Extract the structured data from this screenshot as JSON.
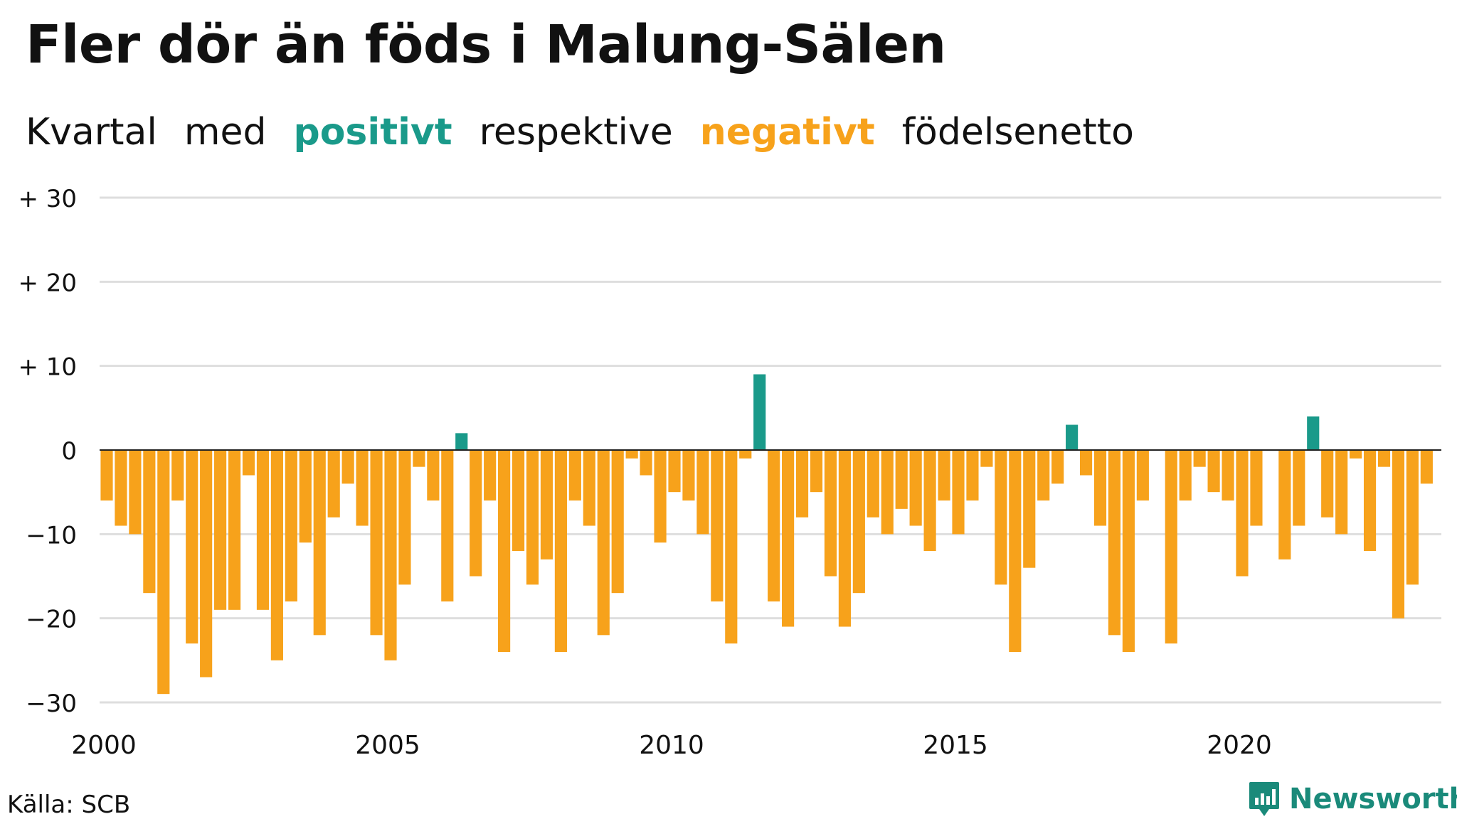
{
  "title": "Fler dör än föds i Malung-Sälen",
  "subtitle": {
    "w1": "Kvartal",
    "w2": "med",
    "positive": "positivt",
    "w3": "respektive",
    "negative": "negativt",
    "w4": "födelsenetto"
  },
  "colors": {
    "positive": "#1a9a8a",
    "negative": "#f7a21b",
    "grid": "#dedede",
    "zero": "#222222"
  },
  "source": "Källa: SCB",
  "brand": "Newsworthy",
  "chart_data": {
    "type": "bar",
    "title": "Fler dör än föds i Malung-Sälen",
    "subtitle": "Kvartal med positivt respektive negativt födelsenetto",
    "x_unit": "quarter",
    "x_start": "2000 Q1",
    "ylim": [
      -30,
      30
    ],
    "xlim": [
      2000,
      2023.75
    ],
    "y_ticks": [
      30,
      20,
      10,
      0,
      -10,
      -20,
      -30
    ],
    "y_tick_labels": [
      "+ 30",
      "+ 20",
      "+ 10",
      "0",
      "−10",
      "−20",
      "−30"
    ],
    "x_ticks": [
      2000,
      2005,
      2010,
      2015,
      2020
    ],
    "x_tick_labels": [
      "2000",
      "2005",
      "2010",
      "2015",
      "2020"
    ],
    "grid": true,
    "values": [
      -6,
      -9,
      -10,
      -17,
      -29,
      -6,
      -23,
      -27,
      -19,
      -19,
      -3,
      -19,
      -25,
      -18,
      -11,
      -22,
      -8,
      -4,
      -9,
      -22,
      -25,
      -16,
      -2,
      -6,
      -18,
      2,
      -15,
      -6,
      -24,
      -12,
      -16,
      -13,
      -24,
      -6,
      -9,
      -22,
      -17,
      -1,
      -3,
      -11,
      -5,
      -6,
      -10,
      -18,
      -23,
      -1,
      9,
      -18,
      -21,
      -8,
      -5,
      -15,
      -21,
      -17,
      -8,
      -10,
      -7,
      -9,
      -12,
      -6,
      -10,
      -6,
      -2,
      -16,
      -24,
      -14,
      -6,
      -4,
      3,
      -3,
      -9,
      -22,
      -24,
      -6,
      0,
      -23,
      -6,
      -2,
      -5,
      -6,
      -15,
      -9,
      0,
      -13,
      -9,
      4,
      -8,
      -10,
      -1,
      -12,
      -2,
      -20,
      -16,
      -4
    ]
  }
}
